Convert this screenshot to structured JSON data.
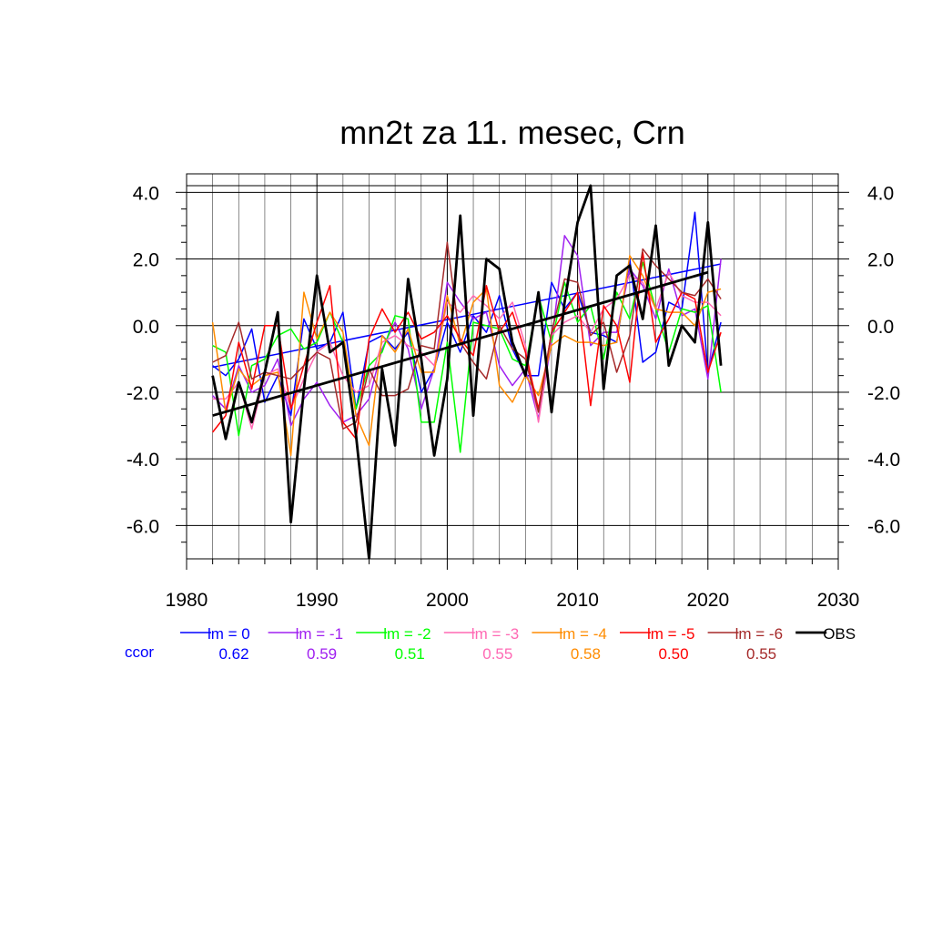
{
  "chart_data": {
    "type": "line",
    "title": "mn2t za 11. mesec, Crn",
    "xlabel": "",
    "ylabel": "",
    "xlim": [
      1980,
      2030
    ],
    "ylim": [
      -7.0,
      4.2
    ],
    "x_ticks": [
      1980,
      1990,
      2000,
      2010,
      2020,
      2030
    ],
    "y_ticks": [
      -6.0,
      -4.0,
      -2.0,
      0.0,
      2.0,
      4.0
    ],
    "x_tick_labels": [
      "1980",
      "1990",
      "2000",
      "2010",
      "2020",
      "2030"
    ],
    "y_tick_labels": [
      "-6.0",
      "-4.0",
      "-2.0",
      "0.0",
      "2.0",
      "4.0"
    ],
    "grid": true,
    "legend_position": "bottom",
    "ccor_label": "ccor",
    "x": [
      1982,
      1983,
      1984,
      1985,
      1986,
      1987,
      1988,
      1989,
      1990,
      1991,
      1992,
      1993,
      1994,
      1995,
      1996,
      1997,
      1998,
      1999,
      2000,
      2001,
      2002,
      2003,
      2004,
      2005,
      2006,
      2007,
      2008,
      2009,
      2010,
      2011,
      2012,
      2013,
      2014,
      2015,
      2016,
      2017,
      2018,
      2019,
      2020,
      2021
    ],
    "series": [
      {
        "name": "lm = 0",
        "color": "#0000ff",
        "ccor": "0.62",
        "width": 1.5,
        "values": [
          -1.2,
          -1.5,
          -1.0,
          -0.1,
          -2.3,
          -1.5,
          -2.7,
          0.2,
          -0.7,
          -0.5,
          0.4,
          -2.5,
          -0.5,
          -0.3,
          -0.7,
          -0.2,
          -2.0,
          -1.3,
          0.1,
          -0.8,
          0.3,
          -0.2,
          0.9,
          -0.7,
          -1.5,
          -1.5,
          1.3,
          0.5,
          1.0,
          -0.2,
          -0.3,
          -0.5,
          2.0,
          -1.1,
          -0.8,
          0.7,
          0.5,
          3.4,
          -1.4,
          0.1
        ],
        "trend": [
          -1.25,
          1.85
        ]
      },
      {
        "name": "lm = -1",
        "color": "#a020f0",
        "ccor": "0.59",
        "width": 1.5,
        "values": [
          -2.1,
          -2.5,
          -1.2,
          -2.0,
          -1.8,
          -1.0,
          -3.0,
          -2.2,
          -1.7,
          -2.4,
          -2.9,
          -2.7,
          -2.2,
          -0.7,
          0.1,
          -0.7,
          -2.5,
          -1.3,
          1.3,
          0.7,
          0.2,
          0.4,
          -1.2,
          -1.8,
          -1.3,
          -2.8,
          -0.5,
          2.7,
          2.1,
          -0.6,
          -0.2,
          -0.2,
          1.7,
          1.2,
          0.2,
          1.7,
          0.3,
          0.5,
          -1.6,
          2.0
        ]
      },
      {
        "name": "lm = -2",
        "color": "#00ff00",
        "ccor": "0.51",
        "width": 1.5,
        "values": [
          -0.6,
          -0.8,
          -3.3,
          -1.2,
          -1.0,
          -0.3,
          -0.1,
          -0.7,
          -0.5,
          0.4,
          -0.5,
          -2.5,
          -1.2,
          -0.8,
          0.3,
          0.2,
          -2.9,
          -2.9,
          -0.5,
          -3.8,
          0.1,
          0.0,
          -0.1,
          -1.0,
          -1.2,
          0.9,
          -0.5,
          1.3,
          0.1,
          0.6,
          -1.0,
          1.0,
          0.2,
          1.9,
          0.5,
          -0.8,
          0.5,
          0.4,
          0.6,
          -2.0
        ]
      },
      {
        "name": "lm = -3",
        "color": "#ff69b4",
        "ccor": "0.55",
        "width": 1.5,
        "values": [
          -2.2,
          -2.2,
          -1.7,
          -3.1,
          -1.5,
          -1.3,
          -2.5,
          -1.6,
          -0.8,
          -0.5,
          -1.5,
          -2.0,
          -1.8,
          -0.5,
          -0.3,
          -0.6,
          -0.8,
          -1.2,
          0.7,
          0.4,
          0.9,
          0.6,
          0.2,
          0.7,
          -0.6,
          -2.9,
          -0.3,
          0.1,
          0.3,
          -0.2,
          0.5,
          0.8,
          1.5,
          1.3,
          0.5,
          1.6,
          0.9,
          0.7,
          0.7,
          0.3
        ]
      },
      {
        "name": "lm = -4",
        "color": "#ff8c00",
        "ccor": "0.58",
        "width": 1.5,
        "values": [
          0.1,
          -2.6,
          -1.3,
          -1.8,
          -1.5,
          -1.4,
          -3.9,
          1.0,
          -0.4,
          0.4,
          -0.2,
          -2.7,
          -3.6,
          -0.3,
          -0.8,
          -0.1,
          -1.4,
          -1.4,
          0.9,
          -0.6,
          0.7,
          1.1,
          -1.8,
          -2.3,
          -1.5,
          -2.1,
          -0.6,
          -0.3,
          -0.5,
          -0.5,
          -0.6,
          -0.5,
          2.1,
          1.5,
          0.5,
          0.4,
          0.4,
          0.0,
          1.0,
          1.1
        ]
      },
      {
        "name": "lm = -5",
        "color": "#ff0000",
        "ccor": "0.50",
        "width": 1.5,
        "values": [
          -3.2,
          -2.7,
          -0.5,
          -1.9,
          0.0,
          0.0,
          -2.5,
          -1.2,
          0.1,
          1.2,
          -2.9,
          -3.4,
          -0.4,
          0.5,
          -0.2,
          0.4,
          -0.4,
          -0.2,
          0.3,
          -0.4,
          -0.9,
          1.2,
          -0.2,
          0.4,
          -0.8,
          -2.5,
          -0.2,
          0.4,
          1.0,
          -2.4,
          0.6,
          0.0,
          -1.7,
          2.2,
          -0.5,
          0.2,
          1.0,
          0.8,
          -1.4,
          -0.2
        ]
      },
      {
        "name": "lm = -6",
        "color": "#a52a2a",
        "ccor": "0.55",
        "width": 1.5,
        "values": [
          -1.1,
          -0.9,
          0.1,
          -1.6,
          -1.4,
          -1.5,
          -1.6,
          -1.2,
          -0.8,
          -1.0,
          -3.1,
          -2.9,
          -1.3,
          -2.1,
          -2.1,
          -1.9,
          -0.6,
          -0.7,
          2.5,
          -0.5,
          -1.1,
          -1.6,
          0.0,
          -0.7,
          -1.0,
          -2.6,
          -0.2,
          1.4,
          1.3,
          -0.3,
          0.1,
          -1.4,
          -0.3,
          2.3,
          1.8,
          1.4,
          1.0,
          0.9,
          1.4,
          0.8
        ]
      },
      {
        "name": "OBS",
        "color": "#000000",
        "width": 2.8,
        "values": [
          -1.5,
          -3.4,
          -1.7,
          -2.9,
          -1.4,
          0.4,
          -5.9,
          -1.9,
          1.5,
          -0.8,
          -0.5,
          -3.3,
          -7.0,
          -1.3,
          -3.6,
          1.4,
          -1.0,
          -3.9,
          -1.6,
          3.3,
          -2.7,
          2.0,
          1.7,
          -0.5,
          -1.5,
          1.0,
          -2.6,
          0.7,
          3.1,
          4.2,
          -1.9,
          1.5,
          1.8,
          0.2,
          3.0,
          -1.2,
          0.0,
          -0.5,
          3.1,
          -1.2
        ],
        "trend": [
          -2.7,
          1.6
        ]
      }
    ]
  }
}
